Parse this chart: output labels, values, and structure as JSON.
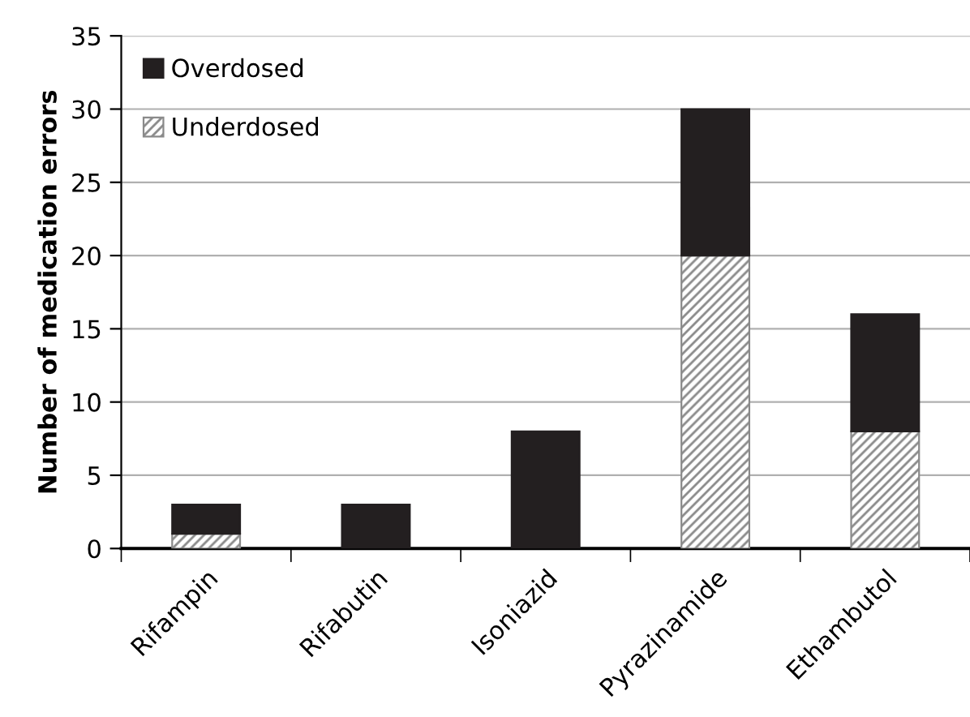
{
  "chart_data": {
    "type": "bar",
    "ylabel": "Number of medication errors",
    "categories": [
      "Rifampin",
      "Rifabutin",
      "Isoniazid",
      "Pyrazinamide",
      "Ethambutol"
    ],
    "stacked": true,
    "series": [
      {
        "name": "Underdosed",
        "color": "#8a8a8a",
        "values": [
          1,
          0,
          0,
          20,
          8
        ]
      },
      {
        "name": "Overdosed",
        "color": "#231f20",
        "values": [
          2,
          3,
          8,
          10,
          8
        ]
      }
    ],
    "ylim": [
      0,
      35
    ],
    "yticks": [
      0,
      5,
      10,
      15,
      20,
      25,
      30,
      35
    ],
    "grid": "y",
    "legend": "top left"
  }
}
